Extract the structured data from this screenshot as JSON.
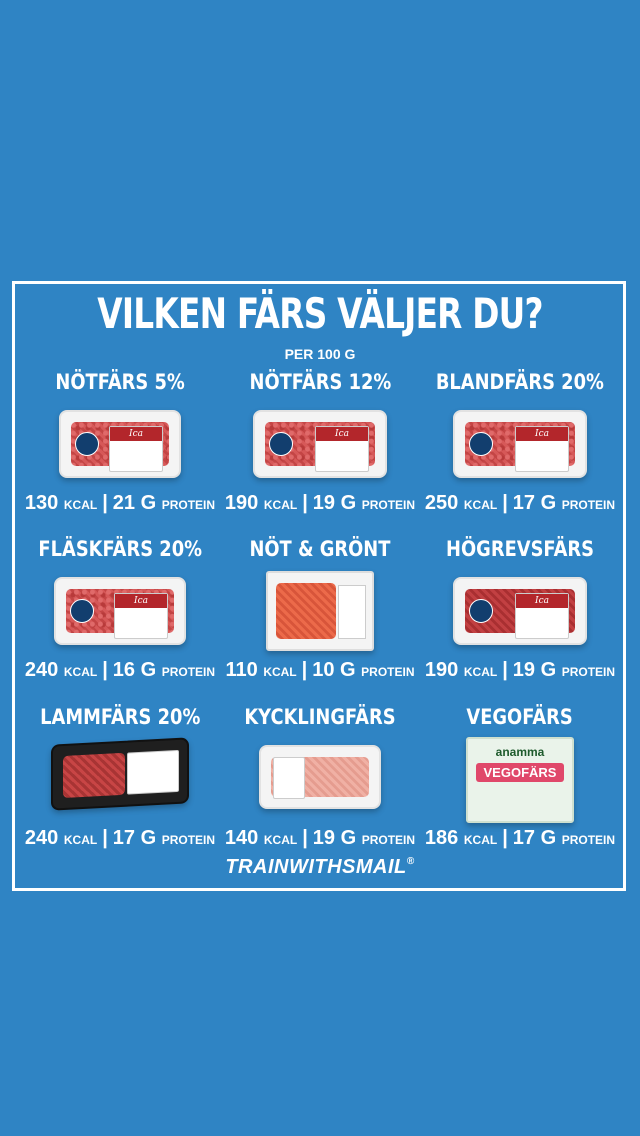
{
  "title": "VILKEN FÄRS VÄLJER DU?",
  "subtitle": "PER 100 G",
  "items": [
    {
      "name": "NÖTFÄRS 5%",
      "kcal": "130",
      "kcal_unit": "KCAL",
      "protein": "21 G",
      "protein_unit": "PROTEIN"
    },
    {
      "name": "NÖTFÄRS 12%",
      "kcal": "190",
      "kcal_unit": "KCAL",
      "protein": "19 G",
      "protein_unit": "PROTEIN"
    },
    {
      "name": "BLANDFÄRS 20%",
      "kcal": "250",
      "kcal_unit": "KCAL",
      "protein": "17 G",
      "protein_unit": "PROTEIN"
    },
    {
      "name": "FLÄSKFÄRS 20%",
      "kcal": "240",
      "kcal_unit": "KCAL",
      "protein": "16 G",
      "protein_unit": "PROTEIN"
    },
    {
      "name": "NÖT & GRÖNT",
      "kcal": "110",
      "kcal_unit": "KCAL",
      "protein": "10 G",
      "protein_unit": "PROTEIN"
    },
    {
      "name": "HÖGREVSFÄRS",
      "kcal": "190",
      "kcal_unit": "KCAL",
      "protein": "19 G",
      "protein_unit": "PROTEIN"
    },
    {
      "name": "LAMMFÄRS 20%",
      "kcal": "240",
      "kcal_unit": "KCAL",
      "protein": "17 G",
      "protein_unit": "PROTEIN"
    },
    {
      "name": "KYCKLINGFÄRS",
      "kcal": "140",
      "kcal_unit": "KCAL",
      "protein": "19 G",
      "protein_unit": "PROTEIN"
    },
    {
      "name": "VEGOFÄRS",
      "kcal": "186",
      "kcal_unit": "KCAL",
      "protein": "17 G",
      "protein_unit": "PROTEIN"
    }
  ],
  "pack_labels": {
    "ica": "Ica",
    "vego_brand": "anamma",
    "vego_name": "VEGOFÄRS"
  },
  "footer": {
    "brand": "TRAINWITHSMAIL",
    "reg": "®"
  },
  "colors": {
    "background": "#2f84c4",
    "frame": "#ffffff",
    "meat": "#d65858"
  }
}
